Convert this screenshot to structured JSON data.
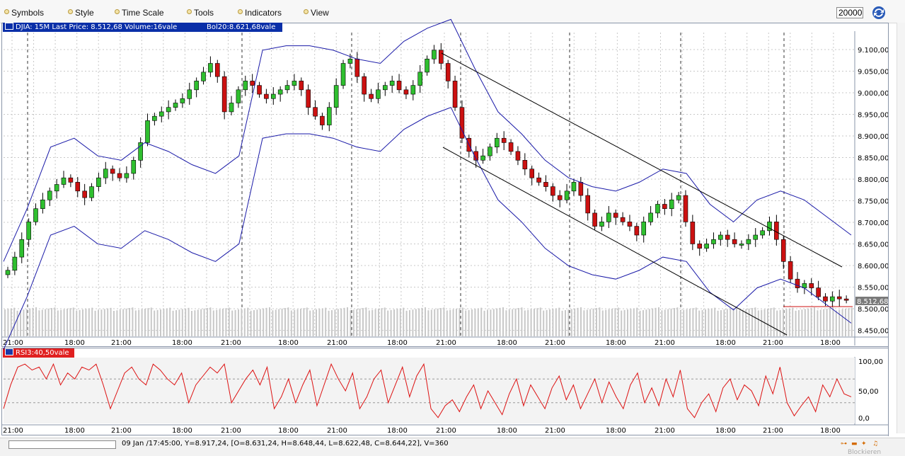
{
  "menu": [
    {
      "label": "Symbols",
      "name": "menu-symbols"
    },
    {
      "label": "Style",
      "name": "menu-style"
    },
    {
      "label": "Time Scale",
      "name": "menu-time-scale"
    },
    {
      "label": "Tools",
      "name": "menu-tools"
    },
    {
      "label": "Indicators",
      "name": "menu-indicators"
    },
    {
      "label": "View",
      "name": "menu-view"
    }
  ],
  "toolbar": {
    "interval_value": "20000",
    "refresh_icon": "refresh-icon"
  },
  "main_chart": {
    "header": "DJIA: 15M Last Price: 8.512,68 Volume:16vale",
    "indicator": "Bol20:8.621,68vale",
    "last_price_tag": "8.512,68",
    "y_ticks": [
      "9.100,00",
      "9.050,00",
      "9.000,00",
      "8.950,00",
      "8.900,00",
      "8.850,00",
      "8.800,00",
      "8.750,00",
      "8.700,00",
      "8.650,00",
      "8.600,00",
      "8.550,00",
      "8.500,00",
      "8.450,00"
    ],
    "x_ticks": [
      "21:00",
      "18:00",
      "21:00",
      "18:00",
      "21:00",
      "18:00",
      "21:00",
      "18:00",
      "21:00",
      "18:00",
      "21:00",
      "18:00",
      "21:00",
      "18:00"
    ],
    "colors": {
      "up": "#2fbf2f",
      "down": "#cc1111",
      "band": "#1a1aa8",
      "grid": "#c8c8c8"
    }
  },
  "chart_data": [
    {
      "type": "candlestick",
      "title": "DJIA: 15M",
      "ylim": [
        8430,
        9120
      ],
      "series": [
        {
          "name": "DJIA",
          "values": [
            8580,
            8610,
            8650,
            8690,
            8720,
            8740,
            8760,
            8775,
            8790,
            8780,
            8760,
            8745,
            8770,
            8790,
            8810,
            8800,
            8790,
            8800,
            8830,
            8870,
            8920,
            8930,
            8940,
            8950,
            8960,
            8970,
            8990,
            9010,
            9030,
            9050,
            9020,
            8940,
            8960,
            8990,
            9010,
            9000,
            8980,
            8970,
            8980,
            8990,
            9000,
            9010,
            8990,
            8950,
            8930,
            8910,
            8950,
            9000,
            9050,
            9060,
            9020,
            8980,
            8970,
            8990,
            9000,
            9010,
            8990,
            8980,
            9000,
            9030,
            9060,
            9080,
            9050,
            9010,
            8950,
            8880,
            8850,
            8830,
            8840,
            8860,
            8880,
            8870,
            8850,
            8830,
            8810,
            8790,
            8780,
            8770,
            8750,
            8740,
            8760,
            8780,
            8750,
            8710,
            8680,
            8690,
            8710,
            8700,
            8690,
            8680,
            8660,
            8690,
            8710,
            8730,
            8720,
            8740,
            8750,
            8690,
            8640,
            8630,
            8640,
            8650,
            8660,
            8650,
            8640,
            8640,
            8650,
            8660,
            8670,
            8690,
            8650,
            8600,
            8560,
            8540,
            8550,
            8540,
            8520,
            8510,
            8520,
            8515,
            8513
          ]
        },
        {
          "name": "Bol20",
          "values": [
            8560,
            8680,
            8820,
            8840,
            8800,
            8790,
            8830,
            8810,
            8780,
            8760,
            8800,
            9040,
            9050,
            9050,
            9040,
            9020,
            9010,
            9060,
            9090,
            9110,
            9000,
            8900,
            8850,
            8790,
            8750,
            8730,
            8720,
            8740,
            8770,
            8760,
            8690,
            8650,
            8700,
            8720,
            8700,
            8660,
            8620
          ]
        }
      ],
      "volume": {
        "label": "Volume"
      }
    },
    {
      "type": "line",
      "title": "RSI3:40,50vale",
      "ylim": [
        0,
        100
      ],
      "y_ticks": [
        "100,00",
        "50,00",
        "0,0"
      ],
      "series": [
        {
          "name": "RSI3",
          "values": [
            20,
            60,
            90,
            95,
            85,
            90,
            70,
            95,
            60,
            80,
            70,
            90,
            85,
            95,
            60,
            20,
            50,
            80,
            90,
            70,
            60,
            95,
            85,
            70,
            60,
            80,
            30,
            60,
            75,
            90,
            80,
            95,
            30,
            50,
            70,
            85,
            60,
            90,
            20,
            40,
            70,
            30,
            60,
            85,
            25,
            60,
            95,
            70,
            50,
            80,
            20,
            40,
            70,
            85,
            30,
            60,
            90,
            40,
            75,
            95,
            20,
            5,
            25,
            35,
            15,
            40,
            60,
            20,
            50,
            30,
            10,
            45,
            70,
            25,
            60,
            40,
            20,
            55,
            75,
            35,
            60,
            20,
            45,
            70,
            30,
            65,
            40,
            20,
            60,
            80,
            30,
            55,
            25,
            70,
            40,
            85,
            20,
            5,
            30,
            45,
            15,
            55,
            70,
            35,
            60,
            50,
            25,
            75,
            45,
            90,
            30,
            8,
            25,
            40,
            15,
            60,
            40,
            70,
            45,
            40
          ]
        }
      ]
    }
  ],
  "rsi_chart": {
    "header": "RSI3:40,50vale"
  },
  "status": {
    "text": "09 Jan /17:45:00, Y=8.917,24, [O=8.631,24, H=8.648,44, L=8.622,48, C=8.644,22], V=360"
  },
  "footer": {
    "blockieren": "Blockieren"
  }
}
